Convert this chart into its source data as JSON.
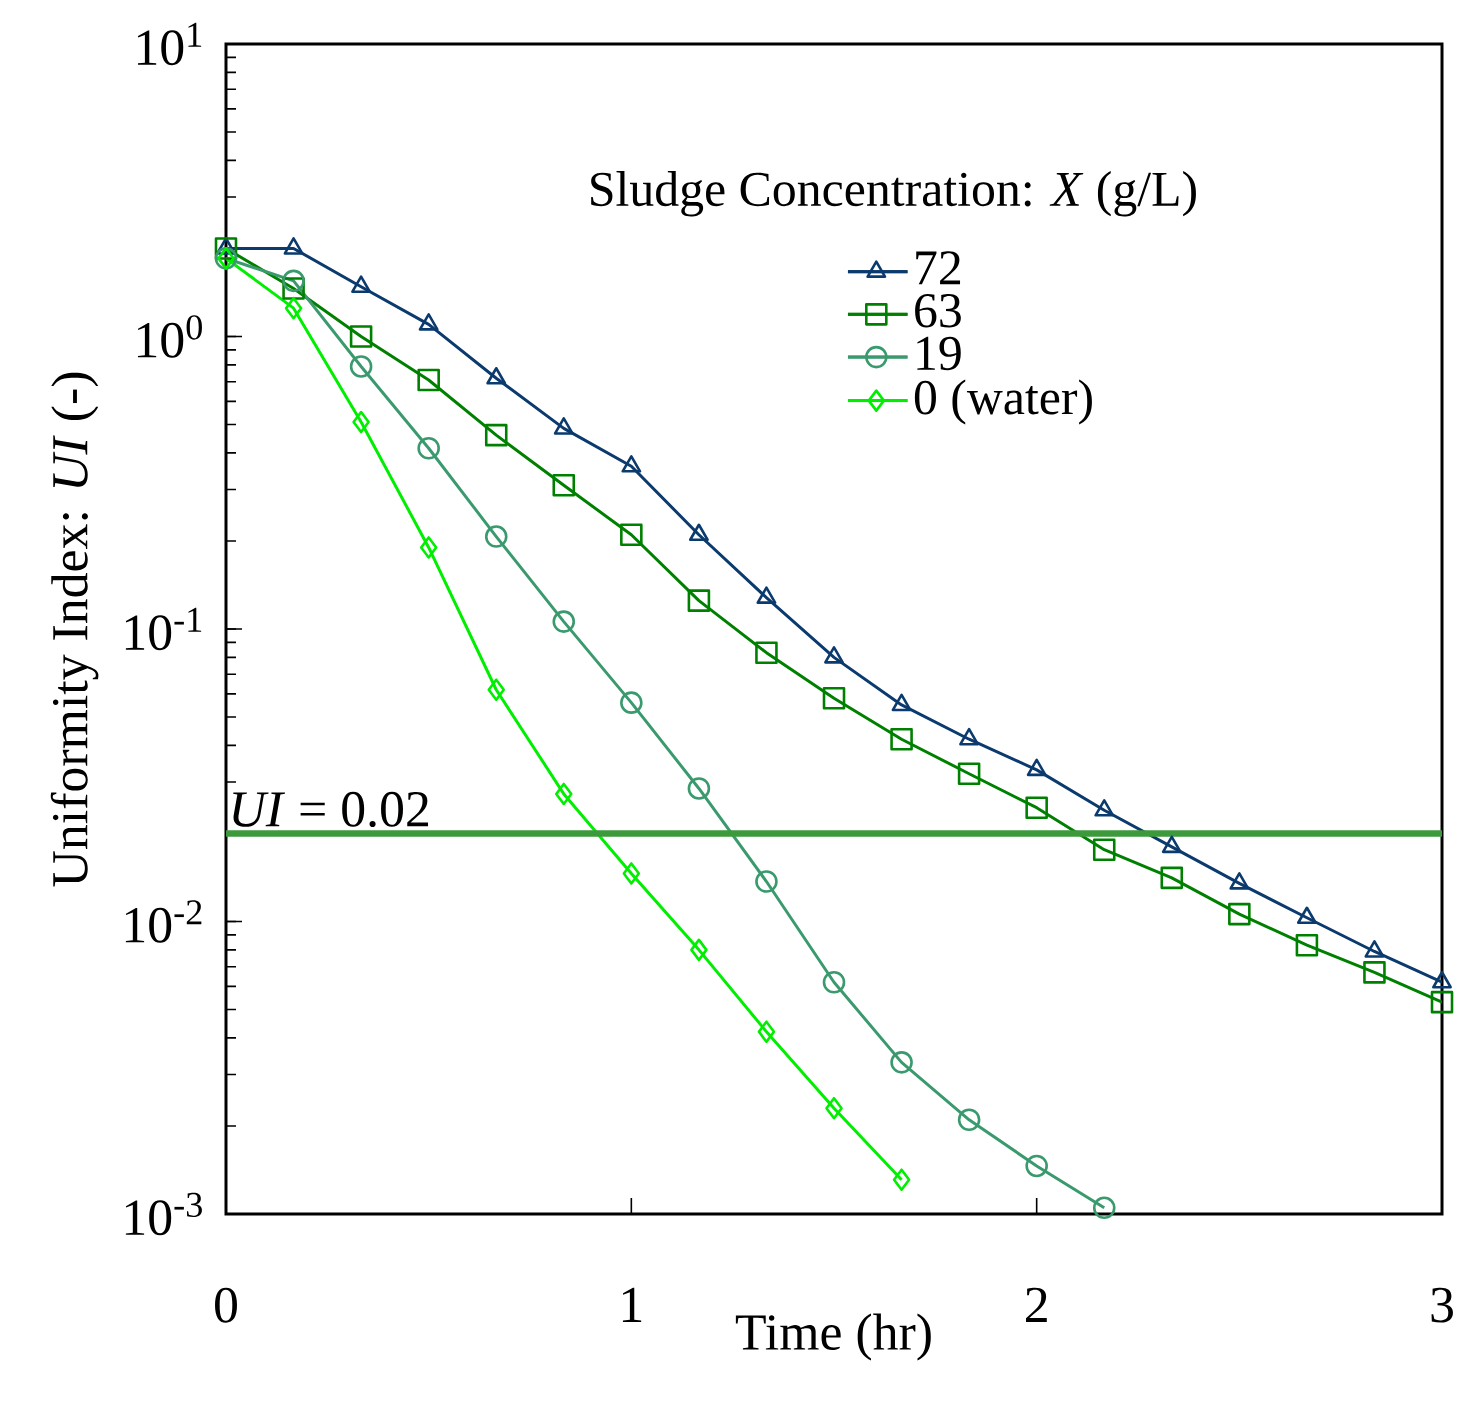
{
  "chart_data": {
    "type": "line",
    "xlabel": "Time (hr)",
    "ylabel": "Uniformity Index: *UI* (-)",
    "legend_title": "Sludge Concentration: *X* (g/L)",
    "x": [
      0,
      0.1667,
      0.3333,
      0.5,
      0.6667,
      0.8333,
      1,
      1.1667,
      1.3333,
      1.5,
      1.6667,
      1.8333,
      2,
      2.1667,
      2.3333,
      2.5,
      2.6667,
      2.8333,
      3
    ],
    "series": [
      {
        "name": "72",
        "color": "#0a3a6e",
        "marker": "triangle",
        "values": [
          2.0,
          2.0,
          1.48,
          1.1,
          0.72,
          0.485,
          0.36,
          0.21,
          0.128,
          0.08,
          0.055,
          0.042,
          0.033,
          0.024,
          0.018,
          0.0135,
          0.0103,
          0.0079,
          0.0062
        ]
      },
      {
        "name": "63",
        "color": "#008000",
        "marker": "square",
        "values": [
          2.0,
          1.46,
          1.0,
          0.71,
          0.46,
          0.31,
          0.21,
          0.125,
          0.083,
          0.058,
          0.042,
          0.032,
          0.0245,
          0.0176,
          0.0141,
          0.0106,
          0.0083,
          0.0067,
          0.0053
        ]
      },
      {
        "name": "19",
        "color": "#3a9a6e",
        "marker": "circle",
        "values": [
          1.85,
          1.55,
          0.79,
          0.415,
          0.207,
          0.106,
          0.056,
          0.0285,
          0.0137,
          0.0062,
          0.0033,
          0.0021,
          0.00146,
          0.00105,
          null,
          null,
          null,
          null,
          null
        ]
      },
      {
        "name": "0 (water)",
        "color": "#00ee00",
        "marker": "diamond",
        "values": [
          1.85,
          1.25,
          0.51,
          0.19,
          0.062,
          0.0273,
          0.0146,
          0.008,
          0.0042,
          0.0023,
          0.00131,
          null,
          null,
          null,
          null,
          null,
          null,
          null,
          null
        ]
      }
    ],
    "log": "y",
    "xlim": [
      0,
      3
    ],
    "xticks": [
      0,
      1,
      2,
      3
    ],
    "ylim": [
      0.001,
      10
    ],
    "yticks": [
      {
        "value": 0.001,
        "label": "10$^{-3}$"
      },
      {
        "value": 0.01,
        "label": "10$^{-2}$"
      },
      {
        "value": 0.1,
        "label": "10$^{-1}$"
      },
      {
        "value": 1,
        "label": "10$^{0}$"
      },
      {
        "value": 10,
        "label": "10$^{1}$"
      }
    ],
    "ref_lines": [
      {
        "axis": "y",
        "value": 0.02,
        "label": "*UI* = 0.02",
        "color": "#3c9a3c"
      }
    ],
    "legend": "top right",
    "grid": false,
    "line_style": "solid"
  }
}
